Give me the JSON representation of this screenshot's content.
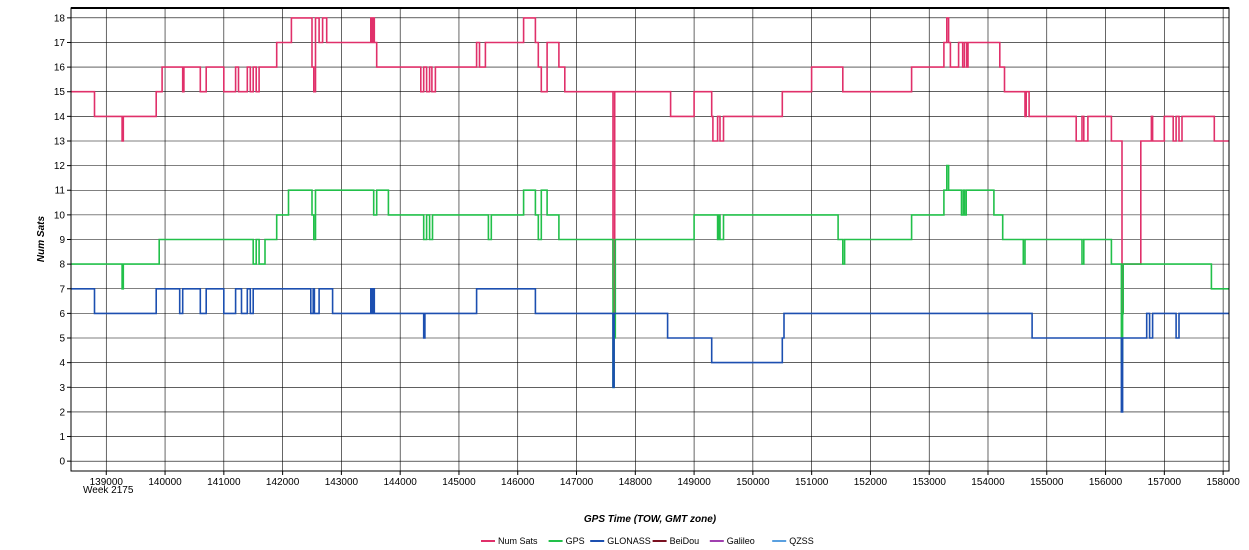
{
  "chart_data": {
    "type": "line",
    "title": "",
    "xlabel": "GPS Time (TOW, GMT zone)",
    "ylabel": "Num Sats",
    "week_label": "Week 2175",
    "xlim": [
      138400,
      158100
    ],
    "ylim": [
      -0.4,
      18.4
    ],
    "x_ticks": [
      139000,
      140000,
      141000,
      142000,
      143000,
      144000,
      145000,
      146000,
      147000,
      148000,
      149000,
      150000,
      151000,
      152000,
      153000,
      154000,
      155000,
      156000,
      157000,
      158000
    ],
    "y_ticks": [
      0,
      1,
      2,
      3,
      4,
      5,
      6,
      7,
      8,
      9,
      10,
      11,
      12,
      13,
      14,
      15,
      16,
      17,
      18
    ],
    "grid": true,
    "legend_position": "bottom-center",
    "series": [
      {
        "name": "Num Sats",
        "color": "#e0306a",
        "x": [
          138400,
          138800,
          139250,
          139270,
          139290,
          139850,
          139880,
          139950,
          140300,
          140320,
          140600,
          140700,
          141000,
          141200,
          141250,
          141400,
          141450,
          141500,
          141550,
          141600,
          141700,
          141900,
          142000,
          142150,
          142500,
          142530,
          142560,
          142620,
          142680,
          142750,
          142900,
          143000,
          143500,
          143520,
          143540,
          143560,
          143600,
          143800,
          144350,
          144400,
          144450,
          144500,
          144540,
          144600,
          145000,
          145300,
          145350,
          145450,
          146000,
          146100,
          146300,
          146350,
          146400,
          146500,
          146700,
          146800,
          146900,
          147000,
          147600,
          147620,
          147630,
          147650,
          147700,
          148000,
          148600,
          149000,
          149300,
          149320,
          149400,
          149440,
          149500,
          150000,
          150500,
          151000,
          151450,
          151530,
          151560,
          152000,
          152700,
          153000,
          153250,
          153300,
          153330,
          153360,
          153500,
          153570,
          153600,
          153640,
          153660,
          153800,
          154000,
          154200,
          154280,
          154600,
          154630,
          154650,
          154700,
          155000,
          155500,
          155600,
          155630,
          155700,
          156000,
          156100,
          156260,
          156280,
          156300,
          156320,
          156400,
          156500,
          156600,
          156750,
          156780,
          156800,
          157000,
          157150,
          157200,
          157250,
          157300,
          157700,
          157850,
          158000,
          158100
        ],
        "y": [
          15,
          14,
          14,
          13,
          14,
          15,
          15,
          16,
          15,
          16,
          15,
          16,
          15,
          16,
          15,
          16,
          15,
          16,
          15,
          16,
          16,
          17,
          17,
          18,
          16,
          15,
          18,
          17,
          18,
          17,
          17,
          17,
          18,
          17,
          18,
          17,
          16,
          16,
          15,
          16,
          15,
          16,
          15,
          16,
          16,
          17,
          16,
          17,
          17,
          18,
          17,
          16,
          15,
          17,
          16,
          15,
          15,
          15,
          15,
          7,
          6,
          15,
          15,
          15,
          14,
          15,
          14,
          13,
          14,
          13,
          14,
          14,
          15,
          16,
          16,
          15,
          15,
          15,
          16,
          16,
          17,
          18,
          17,
          16,
          17,
          16,
          17,
          16,
          17,
          17,
          17,
          16,
          15,
          15,
          14,
          15,
          14,
          14,
          13,
          14,
          13,
          14,
          14,
          13,
          13,
          6,
          8,
          8,
          8,
          8,
          13,
          13,
          14,
          13,
          14,
          13,
          14,
          13,
          14,
          14,
          13,
          13,
          13
        ]
      },
      {
        "name": "GPS",
        "color": "#22c04a",
        "x": [
          138400,
          139250,
          139270,
          139290,
          139900,
          140000,
          141500,
          141550,
          141600,
          141700,
          141900,
          142000,
          142100,
          142500,
          142530,
          142560,
          142600,
          143000,
          143550,
          143600,
          143800,
          144000,
          144400,
          144450,
          144500,
          144550,
          145000,
          145500,
          145550,
          146000,
          146100,
          146300,
          146350,
          146400,
          146500,
          146700,
          146800,
          147000,
          147600,
          147620,
          147640,
          147660,
          147700,
          148000,
          149000,
          149050,
          149400,
          149420,
          149440,
          149500,
          150000,
          151450,
          151530,
          151560,
          152000,
          152700,
          153000,
          153250,
          153300,
          153330,
          153400,
          153550,
          153580,
          153600,
          153630,
          153660,
          153800,
          154100,
          154250,
          154300,
          154600,
          154630,
          155000,
          155600,
          155630,
          155700,
          156000,
          156100,
          156250,
          156270,
          156290,
          156300,
          157000,
          157800,
          158000,
          158100
        ],
        "y": [
          8,
          8,
          7,
          8,
          9,
          9,
          8,
          9,
          8,
          9,
          10,
          10,
          11,
          10,
          9,
          11,
          11,
          11,
          10,
          11,
          10,
          10,
          9,
          10,
          9,
          10,
          10,
          9,
          10,
          10,
          11,
          10,
          9,
          11,
          10,
          9,
          9,
          9,
          9,
          3,
          5,
          9,
          9,
          9,
          10,
          10,
          9,
          10,
          9,
          10,
          10,
          9,
          8,
          9,
          9,
          10,
          10,
          11,
          12,
          11,
          11,
          10,
          11,
          10,
          11,
          11,
          11,
          10,
          9,
          9,
          8,
          9,
          9,
          8,
          9,
          9,
          9,
          8,
          8,
          4,
          6,
          8,
          8,
          7,
          7,
          7
        ]
      },
      {
        "name": "GLONASS",
        "color": "#1c4fb0",
        "x": [
          138400,
          138800,
          139850,
          139900,
          140250,
          140300,
          140600,
          140700,
          141000,
          141200,
          141300,
          141400,
          141450,
          141500,
          141550,
          142000,
          142480,
          142520,
          142540,
          142620,
          142650,
          142850,
          143500,
          143520,
          143540,
          143560,
          143600,
          144400,
          144420,
          144440,
          145000,
          145300,
          146300,
          147000,
          147600,
          147620,
          147640,
          148000,
          148550,
          149000,
          149300,
          150000,
          150500,
          150530,
          150560,
          151000,
          154000,
          154750,
          155000,
          156000,
          156250,
          156270,
          156290,
          156300,
          156650,
          156700,
          156750,
          156800,
          157000,
          157150,
          157200,
          157250,
          157300,
          157500,
          158100
        ],
        "y": [
          7,
          6,
          7,
          7,
          6,
          7,
          6,
          7,
          6,
          7,
          6,
          7,
          6,
          7,
          7,
          7,
          6,
          7,
          6,
          7,
          7,
          6,
          7,
          6,
          7,
          6,
          6,
          5,
          6,
          6,
          6,
          7,
          6,
          6,
          6,
          3,
          6,
          6,
          5,
          5,
          4,
          4,
          5,
          6,
          6,
          6,
          6,
          5,
          5,
          5,
          5,
          2,
          5,
          5,
          5,
          6,
          5,
          6,
          6,
          6,
          5,
          6,
          6,
          6,
          6
        ]
      },
      {
        "name": "BeiDou",
        "color": "#7a1020",
        "x": [],
        "y": []
      },
      {
        "name": "Galileo",
        "color": "#a040b0",
        "x": [],
        "y": []
      },
      {
        "name": "QZSS",
        "color": "#5aa0e0",
        "x": [],
        "y": []
      }
    ]
  }
}
